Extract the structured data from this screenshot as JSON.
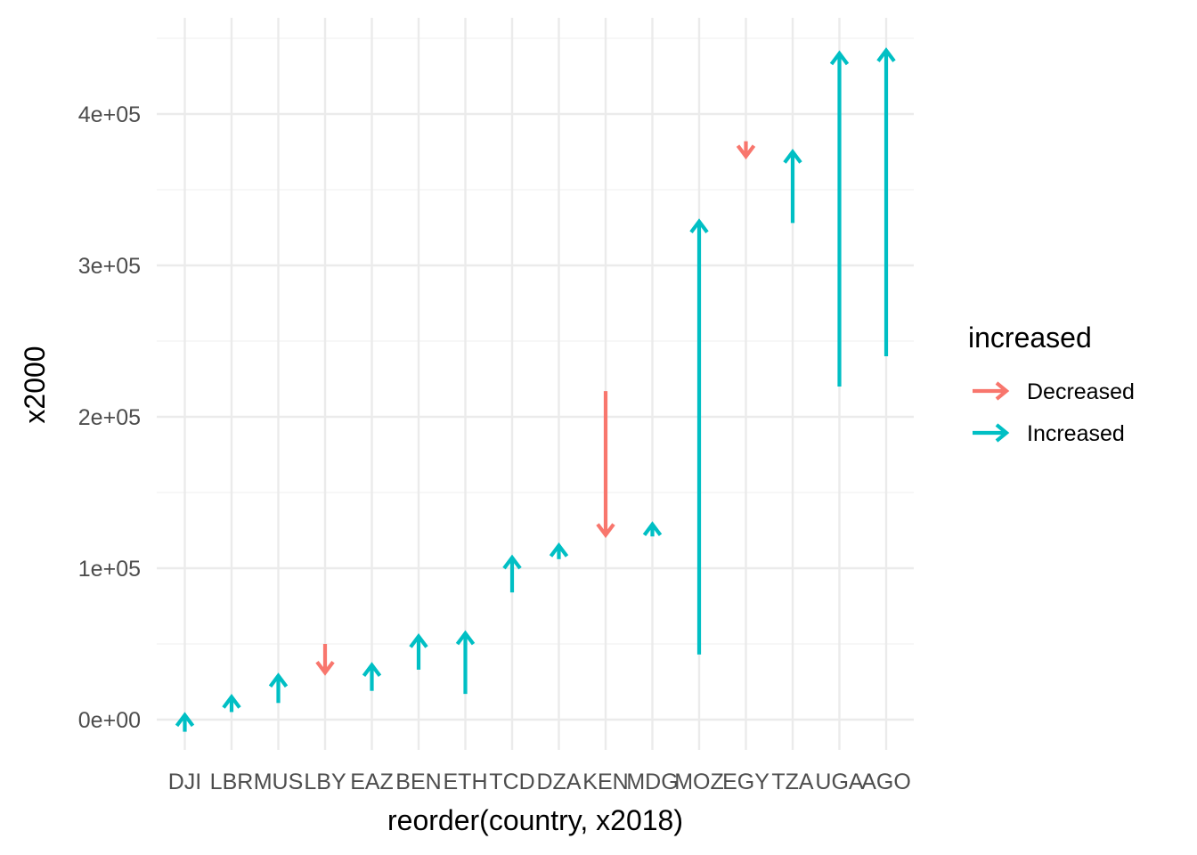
{
  "chart_data": {
    "type": "arrow",
    "xlabel": "reorder(country, x2018)",
    "ylabel": "x2000",
    "ylim": [
      -20000,
      460000
    ],
    "yticks": [
      0,
      100000,
      200000,
      300000,
      400000
    ],
    "ytick_labels": [
      "0e+00",
      "1e+05",
      "2e+05",
      "3e+05",
      "4e+05"
    ],
    "grid": true,
    "legend": {
      "title": "increased",
      "placement": "right",
      "entries": [
        {
          "label": "Decreased",
          "color": "#F8766D"
        },
        {
          "label": "Increased",
          "color": "#00BFC4"
        }
      ]
    },
    "categories": [
      "DJI",
      "LBR",
      "MUS",
      "LBY",
      "EAZ",
      "BEN",
      "ETH",
      "TCD",
      "DZA",
      "KEN",
      "MDG",
      "MOZ",
      "EGY",
      "TZA",
      "UGA",
      "AGO"
    ],
    "arrows": [
      {
        "x": "DJI",
        "from": -8000,
        "to": 3000,
        "group": "Increased"
      },
      {
        "x": "LBR",
        "from": 5000,
        "to": 15000,
        "group": "Increased"
      },
      {
        "x": "MUS",
        "from": 11000,
        "to": 29000,
        "group": "Increased"
      },
      {
        "x": "LBY",
        "from": 50000,
        "to": 31000,
        "group": "Decreased"
      },
      {
        "x": "EAZ",
        "from": 19000,
        "to": 36000,
        "group": "Increased"
      },
      {
        "x": "BEN",
        "from": 33000,
        "to": 55000,
        "group": "Increased"
      },
      {
        "x": "ETH",
        "from": 17000,
        "to": 57000,
        "group": "Increased"
      },
      {
        "x": "TCD",
        "from": 84000,
        "to": 107000,
        "group": "Increased"
      },
      {
        "x": "DZA",
        "from": 106000,
        "to": 115000,
        "group": "Increased"
      },
      {
        "x": "KEN",
        "from": 217000,
        "to": 122000,
        "group": "Decreased"
      },
      {
        "x": "MDG",
        "from": 121000,
        "to": 129000,
        "group": "Increased"
      },
      {
        "x": "MOZ",
        "from": 43000,
        "to": 329000,
        "group": "Increased"
      },
      {
        "x": "EGY",
        "from": 382000,
        "to": 372000,
        "group": "Decreased"
      },
      {
        "x": "TZA",
        "from": 328000,
        "to": 375000,
        "group": "Increased"
      },
      {
        "x": "UGA",
        "from": 220000,
        "to": 440000,
        "group": "Increased"
      },
      {
        "x": "AGO",
        "from": 240000,
        "to": 442000,
        "group": "Increased"
      }
    ]
  }
}
